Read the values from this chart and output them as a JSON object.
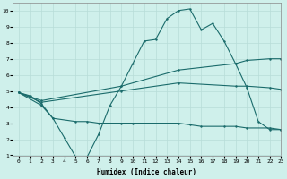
{
  "xlabel": "Humidex (Indice chaleur)",
  "background_color": "#cff0eb",
  "grid_color": "#b8ddd8",
  "line_color": "#1a6b6b",
  "xlim": [
    -0.5,
    23
  ],
  "ylim": [
    1,
    10.5
  ],
  "xticks": [
    0,
    1,
    2,
    3,
    4,
    5,
    6,
    7,
    8,
    9,
    10,
    11,
    12,
    13,
    14,
    15,
    16,
    17,
    18,
    19,
    20,
    21,
    22,
    23
  ],
  "yticks": [
    1,
    2,
    3,
    4,
    5,
    6,
    7,
    8,
    9,
    10
  ],
  "line1_x": [
    0,
    1,
    2,
    3,
    4,
    5,
    6,
    7,
    8,
    9,
    10,
    11,
    12,
    13,
    14,
    15,
    16,
    17,
    18,
    19,
    20,
    21,
    22,
    23
  ],
  "line1_y": [
    4.9,
    4.7,
    4.2,
    3.3,
    2.1,
    0.9,
    0.9,
    2.3,
    4.1,
    5.3,
    6.7,
    8.1,
    8.2,
    9.5,
    10.0,
    10.1,
    8.8,
    9.2,
    8.1,
    6.7,
    5.2,
    3.1,
    2.6,
    2.6
  ],
  "line2_x": [
    0,
    2,
    9,
    14,
    19,
    20,
    22,
    23
  ],
  "line2_y": [
    4.9,
    4.4,
    5.3,
    6.3,
    6.7,
    6.9,
    7.0,
    7.0
  ],
  "line3_x": [
    0,
    2,
    9,
    14,
    19,
    20,
    22,
    23
  ],
  "line3_y": [
    4.9,
    4.3,
    5.0,
    5.5,
    5.3,
    5.3,
    5.2,
    5.1
  ],
  "line4_x": [
    0,
    2,
    3,
    5,
    6,
    7,
    9,
    10,
    14,
    15,
    16,
    18,
    19,
    20,
    22,
    23
  ],
  "line4_y": [
    4.9,
    4.1,
    3.3,
    3.1,
    3.1,
    3.0,
    3.0,
    3.0,
    3.0,
    2.9,
    2.8,
    2.8,
    2.8,
    2.7,
    2.7,
    2.6
  ]
}
